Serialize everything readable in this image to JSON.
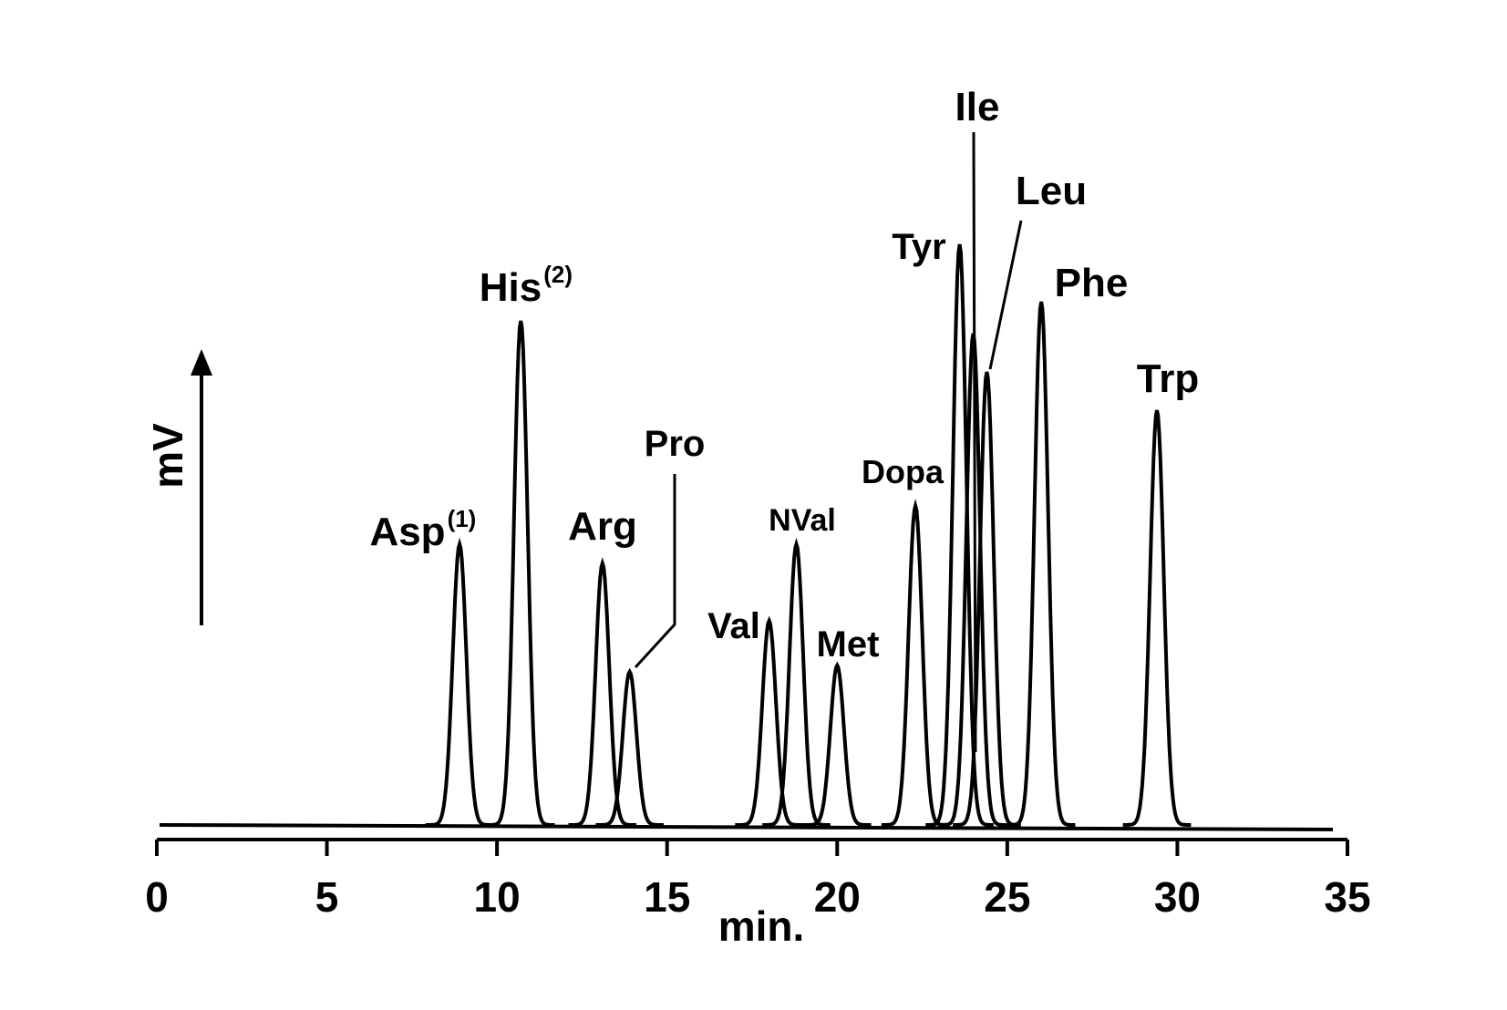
{
  "chart_data": {
    "type": "chromatogram",
    "xlabel": "min.",
    "ylabel": "mV",
    "xlim": [
      0,
      35
    ],
    "xticks": [
      0,
      5,
      10,
      15,
      20,
      25,
      30,
      35
    ],
    "ylim": [
      0,
      100
    ],
    "color": "#000000",
    "peaks": [
      {
        "name": "Asp",
        "sup": "(1)",
        "x": 8.9,
        "value": 44
      },
      {
        "name": "His",
        "sup": "(2)",
        "x": 10.7,
        "value": 79
      },
      {
        "name": "Arg",
        "x": 13.1,
        "value": 41
      },
      {
        "name": "Pro",
        "x": 13.9,
        "value": 24
      },
      {
        "name": "Val",
        "x": 18.0,
        "value": 32
      },
      {
        "name": "NVal",
        "x": 18.8,
        "value": 44
      },
      {
        "name": "Met",
        "x": 20.0,
        "value": 25
      },
      {
        "name": "Dopa",
        "x": 22.3,
        "value": 50
      },
      {
        "name": "Tyr",
        "x": 23.6,
        "value": 91
      },
      {
        "name": "Ile",
        "x": 24.0,
        "value": 77
      },
      {
        "name": "Leu",
        "x": 24.4,
        "value": 71
      },
      {
        "name": "Phe",
        "x": 26.0,
        "value": 82
      },
      {
        "name": "Trp",
        "x": 29.4,
        "value": 65
      }
    ]
  }
}
